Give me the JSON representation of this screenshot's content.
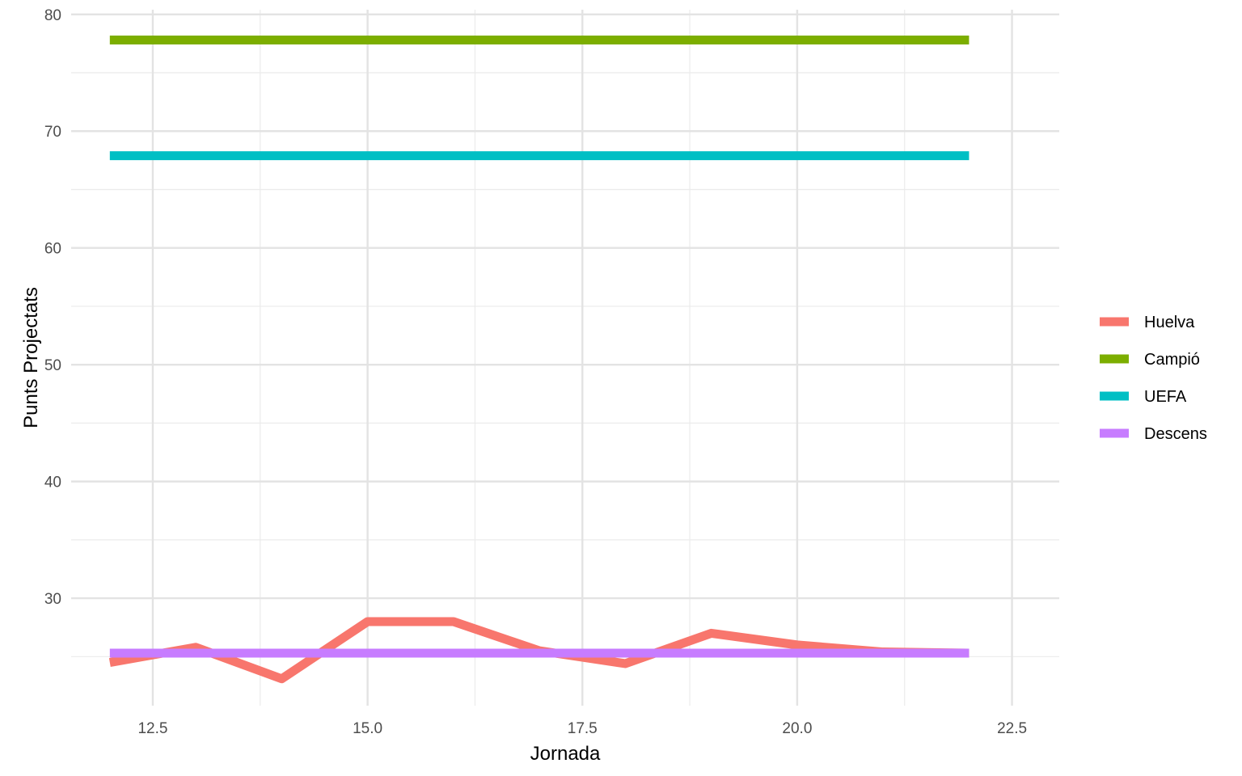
{
  "chart_data": {
    "type": "line",
    "title": "",
    "xlabel": "Jornada",
    "ylabel": "Punts Projectats",
    "xlim": [
      11.55,
      23.05
    ],
    "ylim": [
      20.8,
      80.4
    ],
    "x_ticks_major": [
      12.5,
      15.0,
      17.5,
      20.0,
      22.5
    ],
    "x_tick_labels": [
      "12.5",
      "15.0",
      "17.5",
      "20.0",
      "22.5"
    ],
    "x_ticks_minor": [
      13.75,
      16.25,
      18.75,
      21.25
    ],
    "y_ticks_major": [
      30,
      40,
      50,
      60,
      70,
      80
    ],
    "y_tick_labels": [
      "30",
      "40",
      "50",
      "60",
      "70",
      "80"
    ],
    "y_ticks_minor": [
      25,
      35,
      45,
      55,
      65,
      75
    ],
    "grid": true,
    "legend_position": "right",
    "series": [
      {
        "name": "Huelva",
        "color": "#F8766D",
        "x": [
          12,
          13,
          14,
          15,
          16,
          17,
          18,
          19,
          20,
          21,
          22
        ],
        "y": [
          24.5,
          25.8,
          23.1,
          28.0,
          28.0,
          25.5,
          24.4,
          27.0,
          26.0,
          25.4,
          25.3
        ]
      },
      {
        "name": "Campió",
        "color": "#7CAE00",
        "x": [
          12,
          22
        ],
        "y": [
          77.8,
          77.8
        ]
      },
      {
        "name": "UEFA",
        "color": "#00BFC4",
        "x": [
          12,
          22
        ],
        "y": [
          67.9,
          67.9
        ]
      },
      {
        "name": "Descens",
        "color": "#C77CFF",
        "x": [
          12,
          22
        ],
        "y": [
          25.3,
          25.3
        ]
      }
    ]
  }
}
